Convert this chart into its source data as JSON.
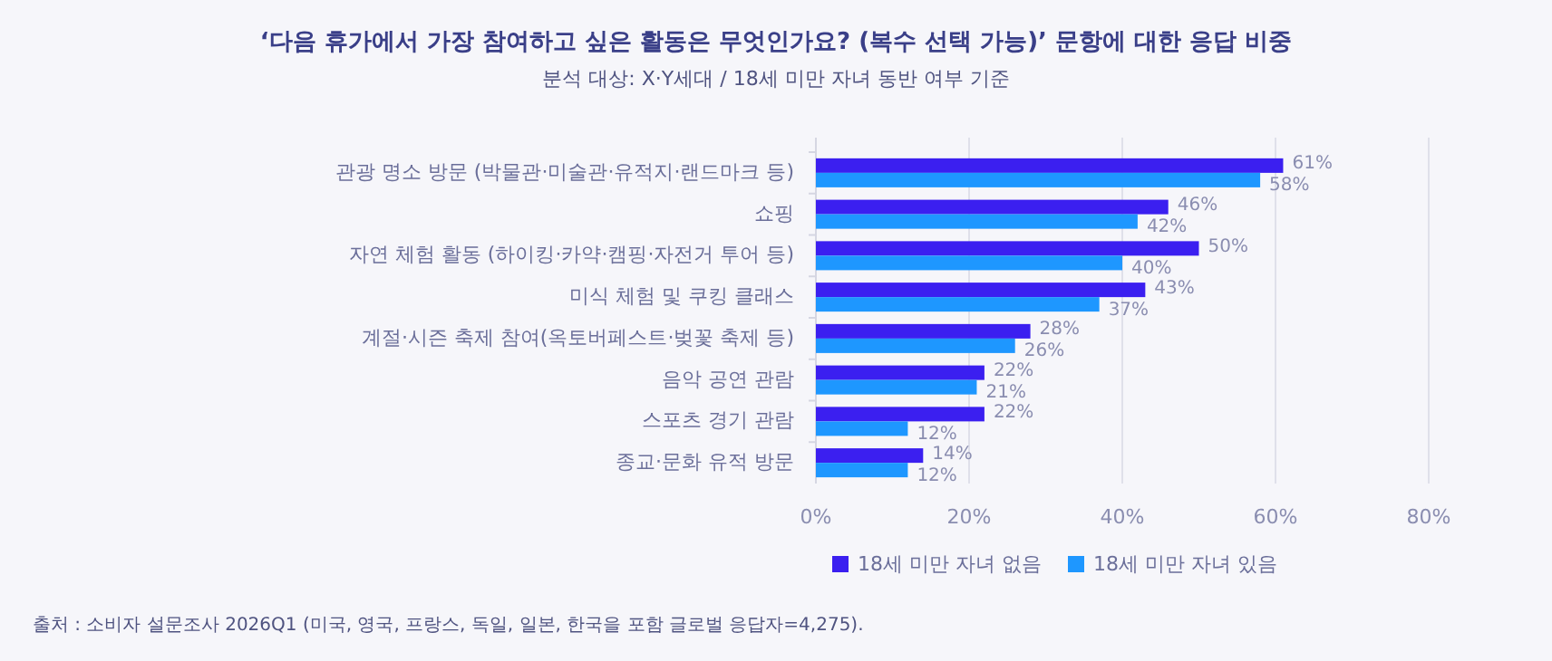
{
  "chart_data": {
    "type": "bar",
    "orientation": "horizontal",
    "title": "‘다음 휴가에서 가장 참여하고 싶은 활동은 무엇인가요? (복수 선택 가능)’ 문항에 대한 응답 비중",
    "subtitle": "분석 대상: X·Y세대 / 18세 미만 자녀 동반 여부 기준",
    "categories": [
      "관광 명소 방문 (박물관·미술관·유적지·랜드마크 등)",
      "쇼핑",
      "자연 체험 활동 (하이킹·카약·캠핑·자전거 투어 등)",
      "미식 체험 및 쿠킹 클래스",
      "계절·시즌 축제 참여(옥토버페스트·벚꽃 축제 등)",
      "음악 공연 관람",
      "스포츠 경기 관람",
      "종교·문화 유적 방문"
    ],
    "series": [
      {
        "name": "18세 미만 자녀 없음",
        "color": "#3b1ff0",
        "values": [
          61,
          46,
          50,
          43,
          28,
          22,
          22,
          14
        ],
        "value_labels": [
          "61%",
          "46%",
          "50%",
          "43%",
          "28%",
          "22%",
          "22%",
          "14%"
        ]
      },
      {
        "name": "18세 미만 자녀 있음",
        "color": "#1e97ff",
        "values": [
          58,
          42,
          40,
          37,
          26,
          21,
          12,
          12
        ],
        "value_labels": [
          "58%",
          "42%",
          "40%",
          "37%",
          "26%",
          "21%",
          "12%",
          "12%"
        ]
      }
    ],
    "xlim": [
      0,
      80
    ],
    "xticks": [
      {
        "value": 0,
        "label": "0%"
      },
      {
        "value": 20,
        "label": "20%"
      },
      {
        "value": 40,
        "label": "40%"
      },
      {
        "value": 60,
        "label": "60%"
      },
      {
        "value": 80,
        "label": "80%"
      }
    ],
    "grid": "x",
    "legend": "bottom",
    "annotations": [
      "출처 : 소비자 설문조사 2026Q1 (미국, 영국, 프랑스, 독일, 일본, 한국을 포함 글로벌 응답자=4,275)."
    ]
  }
}
